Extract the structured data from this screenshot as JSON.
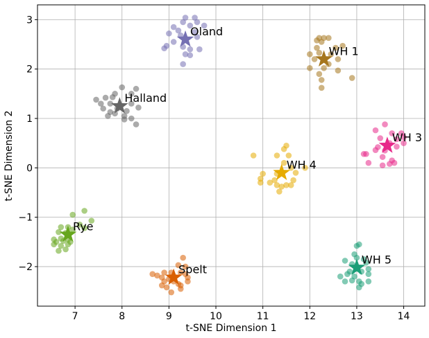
{
  "chart_data": {
    "type": "scatter",
    "title": "",
    "xlabel": "t-SNE Dimension 1",
    "ylabel": "t-SNE Dimension 2",
    "xlim": [
      6.2,
      14.45
    ],
    "ylim": [
      -2.8,
      3.3
    ],
    "xticks": [
      7,
      8,
      9,
      10,
      11,
      12,
      13,
      14
    ],
    "yticks": [
      -2,
      -1,
      0,
      1,
      2,
      3
    ],
    "grid": true,
    "clusters": [
      {
        "name": "Oland",
        "color": "#7570b3",
        "centroid": [
          9.35,
          2.6
        ],
        "points": [
          [
            9.35,
            3.04
          ],
          [
            9.55,
            3.04
          ],
          [
            9.3,
            2.95
          ],
          [
            9.6,
            2.95
          ],
          [
            9.75,
            2.88
          ],
          [
            9.1,
            2.85
          ],
          [
            9.45,
            2.88
          ],
          [
            9.0,
            2.72
          ],
          [
            9.2,
            2.78
          ],
          [
            9.55,
            2.75
          ],
          [
            9.1,
            2.55
          ],
          [
            8.95,
            2.47
          ],
          [
            8.9,
            2.42
          ],
          [
            9.3,
            2.45
          ],
          [
            9.45,
            2.4
          ],
          [
            9.65,
            2.4
          ],
          [
            9.35,
            2.3
          ],
          [
            9.45,
            2.28
          ],
          [
            9.3,
            2.1
          ],
          [
            9.6,
            2.65
          ],
          [
            9.25,
            2.68
          ]
        ]
      },
      {
        "name": "WH 1",
        "color": "#a6761d",
        "centroid": [
          12.3,
          2.2
        ],
        "points": [
          [
            12.2,
            2.63
          ],
          [
            12.3,
            2.63
          ],
          [
            12.4,
            2.63
          ],
          [
            12.15,
            2.58
          ],
          [
            12.25,
            2.55
          ],
          [
            12.7,
            2.47
          ],
          [
            12.15,
            2.43
          ],
          [
            12.55,
            2.43
          ],
          [
            12.0,
            2.3
          ],
          [
            12.2,
            2.33
          ],
          [
            12.1,
            2.2
          ],
          [
            12.45,
            2.3
          ],
          [
            12.6,
            2.2
          ],
          [
            12.0,
            2.02
          ],
          [
            12.3,
            2.02
          ],
          [
            12.6,
            1.97
          ],
          [
            12.2,
            1.9
          ],
          [
            12.25,
            1.78
          ],
          [
            12.9,
            1.82
          ],
          [
            12.25,
            1.62
          ],
          [
            12.4,
            2.1
          ]
        ]
      },
      {
        "name": "Halland",
        "color": "#666666",
        "centroid": [
          7.95,
          1.25
        ],
        "points": [
          [
            8.0,
            1.63
          ],
          [
            8.3,
            1.6
          ],
          [
            7.85,
            1.5
          ],
          [
            7.8,
            1.43
          ],
          [
            7.45,
            1.38
          ],
          [
            7.65,
            1.42
          ],
          [
            8.2,
            1.5
          ],
          [
            7.55,
            1.3
          ],
          [
            7.75,
            1.3
          ],
          [
            7.6,
            1.2
          ],
          [
            7.9,
            1.2
          ],
          [
            8.2,
            1.3
          ],
          [
            8.35,
            1.22
          ],
          [
            7.75,
            1.13
          ],
          [
            8.1,
            1.15
          ],
          [
            7.7,
            1.05
          ],
          [
            7.85,
            1.1
          ],
          [
            8.05,
            1.05
          ],
          [
            8.05,
            0.98
          ],
          [
            8.2,
            1.0
          ],
          [
            8.3,
            0.88
          ]
        ]
      },
      {
        "name": "WH 3",
        "color": "#e7298a",
        "centroid": [
          13.65,
          0.45
        ],
        "points": [
          [
            13.6,
            0.88
          ],
          [
            13.4,
            0.76
          ],
          [
            13.75,
            0.7
          ],
          [
            13.95,
            0.7
          ],
          [
            14.0,
            0.62
          ],
          [
            13.5,
            0.6
          ],
          [
            13.85,
            0.58
          ],
          [
            13.7,
            0.5
          ],
          [
            13.45,
            0.42
          ],
          [
            13.85,
            0.43
          ],
          [
            14.0,
            0.5
          ],
          [
            13.4,
            0.36
          ],
          [
            13.6,
            0.35
          ],
          [
            13.15,
            0.28
          ],
          [
            13.2,
            0.28
          ],
          [
            13.55,
            0.22
          ],
          [
            13.75,
            0.15
          ],
          [
            13.25,
            0.1
          ],
          [
            13.55,
            0.05
          ],
          [
            13.7,
            0.08
          ],
          [
            13.8,
            0.1
          ]
        ]
      },
      {
        "name": "WH 4",
        "color": "#e6ab02",
        "centroid": [
          11.4,
          -0.1
        ],
        "points": [
          [
            11.5,
            0.45
          ],
          [
            11.45,
            0.38
          ],
          [
            11.3,
            0.25
          ],
          [
            11.55,
            0.25
          ],
          [
            10.8,
            0.25
          ],
          [
            11.45,
            0.1
          ],
          [
            11.6,
            0.0
          ],
          [
            11.9,
            0.0
          ],
          [
            11.0,
            -0.12
          ],
          [
            11.3,
            -0.12
          ],
          [
            11.7,
            -0.1
          ],
          [
            10.95,
            -0.22
          ],
          [
            11.25,
            -0.25
          ],
          [
            11.65,
            -0.25
          ],
          [
            10.95,
            -0.3
          ],
          [
            11.15,
            -0.3
          ],
          [
            11.3,
            -0.35
          ],
          [
            11.4,
            -0.38
          ],
          [
            11.5,
            -0.35
          ],
          [
            11.6,
            -0.35
          ],
          [
            11.35,
            -0.48
          ]
        ]
      },
      {
        "name": "Rye",
        "color": "#66a61e",
        "centroid": [
          6.85,
          -1.35
        ],
        "points": [
          [
            7.2,
            -0.87
          ],
          [
            6.95,
            -0.95
          ],
          [
            7.35,
            -1.07
          ],
          [
            7.1,
            -1.15
          ],
          [
            6.7,
            -1.2
          ],
          [
            6.85,
            -1.2
          ],
          [
            7.2,
            -1.22
          ],
          [
            6.65,
            -1.3
          ],
          [
            6.8,
            -1.32
          ],
          [
            6.95,
            -1.25
          ],
          [
            6.55,
            -1.45
          ],
          [
            6.7,
            -1.43
          ],
          [
            6.85,
            -1.45
          ],
          [
            6.6,
            -1.5
          ],
          [
            6.75,
            -1.48
          ],
          [
            6.9,
            -1.5
          ],
          [
            6.55,
            -1.55
          ],
          [
            6.7,
            -1.58
          ],
          [
            6.85,
            -1.55
          ],
          [
            6.65,
            -1.68
          ],
          [
            6.8,
            -1.65
          ]
        ]
      },
      {
        "name": "Spelt",
        "color": "#d95f02",
        "centroid": [
          9.1,
          -2.22
        ],
        "points": [
          [
            9.3,
            -1.82
          ],
          [
            9.2,
            -1.97
          ],
          [
            9.35,
            -2.0
          ],
          [
            8.65,
            -2.15
          ],
          [
            8.75,
            -2.18
          ],
          [
            8.9,
            -2.12
          ],
          [
            9.05,
            -2.12
          ],
          [
            9.25,
            -2.12
          ],
          [
            9.35,
            -2.15
          ],
          [
            8.85,
            -2.22
          ],
          [
            9.0,
            -2.25
          ],
          [
            9.4,
            -2.22
          ],
          [
            9.4,
            -2.3
          ],
          [
            8.9,
            -2.3
          ],
          [
            9.1,
            -2.3
          ],
          [
            9.2,
            -2.35
          ],
          [
            8.85,
            -2.38
          ],
          [
            9.25,
            -2.38
          ],
          [
            8.95,
            -2.42
          ],
          [
            9.25,
            -2.45
          ],
          [
            9.05,
            -2.52
          ]
        ]
      },
      {
        "name": "WH 5",
        "color": "#1b9e77",
        "centroid": [
          13.0,
          -2.02
        ],
        "points": [
          [
            13.05,
            -1.55
          ],
          [
            13.0,
            -1.58
          ],
          [
            12.95,
            -1.75
          ],
          [
            13.0,
            -1.82
          ],
          [
            12.75,
            -1.88
          ],
          [
            13.15,
            -1.85
          ],
          [
            12.9,
            -1.95
          ],
          [
            13.2,
            -1.92
          ],
          [
            13.25,
            -2.05
          ],
          [
            12.85,
            -2.1
          ],
          [
            13.1,
            -2.1
          ],
          [
            12.65,
            -2.2
          ],
          [
            12.8,
            -2.15
          ],
          [
            12.95,
            -2.2
          ],
          [
            13.25,
            -2.15
          ],
          [
            12.75,
            -2.3
          ],
          [
            12.9,
            -2.28
          ],
          [
            13.05,
            -2.3
          ],
          [
            13.25,
            -2.3
          ],
          [
            13.1,
            -2.35
          ],
          [
            13.05,
            -2.42
          ]
        ]
      }
    ]
  }
}
